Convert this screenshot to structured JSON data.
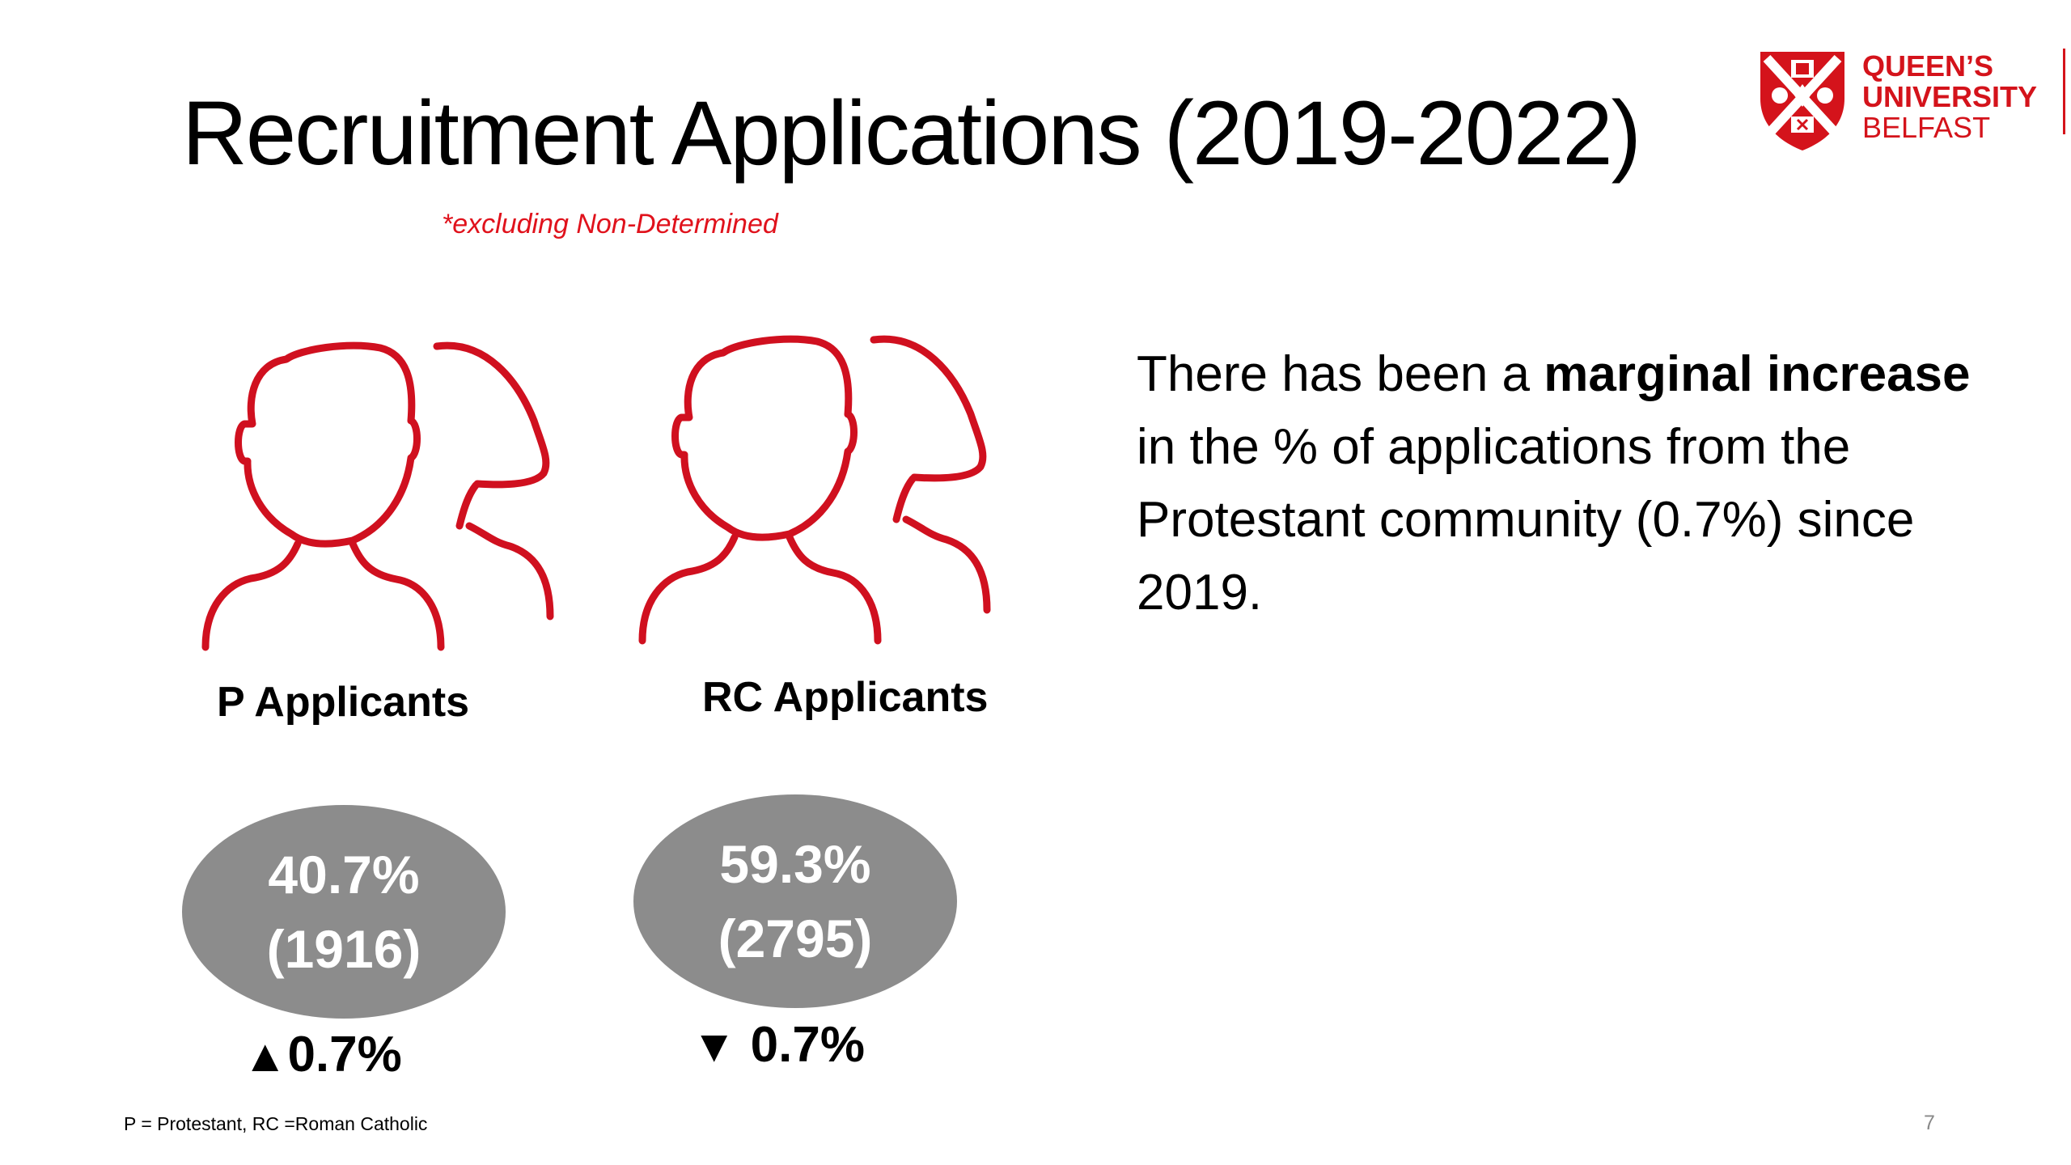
{
  "slide": {
    "title": "Recruitment Applications (2019-2022)",
    "subnote": "*excluding Non-Determined",
    "logo": {
      "line1": "QUEEN’S",
      "line2": "UNIVERSITY",
      "line3": "BELFAST",
      "brand_color": "#d4131b",
      "icon": "university-crest-icon"
    },
    "groups": [
      {
        "label": "P Applicants",
        "percent": "40.7%",
        "count": "(1916)",
        "arrow": "▲",
        "change": "0.7%",
        "icon": "people-outline-icon"
      },
      {
        "label": "RC Applicants",
        "percent": "59.3%",
        "count": "(2795)",
        "arrow": "▼",
        "change": "0.7%",
        "icon": "people-outline-icon"
      }
    ],
    "body": {
      "part1": "There has been a ",
      "bold": "marginal increase",
      "part2": " in the % of applications from the Protestant community (0.7%) since 2019."
    },
    "footnote": "P = Protestant, RC =Roman Catholic",
    "page_number": "7",
    "colors": {
      "accent_red": "#d4131b",
      "icon_red": "#d0101f",
      "oval_gray": "#8c8c8c"
    }
  }
}
